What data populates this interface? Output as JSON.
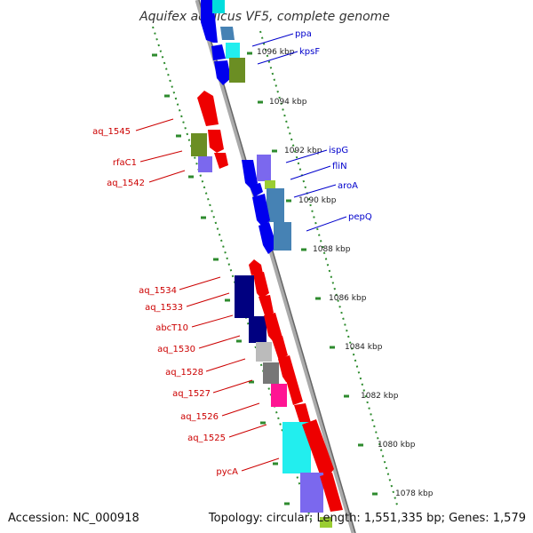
{
  "title": "Aquifex aeolicus VF5, complete genome",
  "footer": {
    "accession": "Accession: NC_000918",
    "stats": "Topology: circular; Length: 1,551,335 bp; Genes: 1,579"
  },
  "colors": {
    "backbone": "#888888",
    "tick": "#2e8b2e",
    "red_label": "#cc0000",
    "blue_label": "#0000cc",
    "gene_red": "#ff0000",
    "gene_blue": "#0000ee",
    "gene_cyan": "#22eeee",
    "gene_olive": "#6b8e23",
    "gene_navy": "#000080",
    "gene_purple": "#7b68ee",
    "gene_steel": "#4682b4",
    "gene_lime": "#9acd32",
    "gene_silver": "#bbbbbb",
    "gene_gray": "#777777",
    "gene_pink": "#ff1493"
  },
  "kbp_labels": [
    "1096 kbp",
    "1094 kbp",
    "1092 kbp",
    "1090 kbp",
    "1088 kbp",
    "1086 kbp",
    "1084 kbp",
    "1082 kbp",
    "1080 kbp",
    "1078 kbp"
  ],
  "genes_left": [
    "aq_1545",
    "rfaC1",
    "aq_1542",
    "aq_1534",
    "aq_1533",
    "abcT10",
    "aq_1530",
    "aq_1528",
    "aq_1527",
    "aq_1526",
    "aq_1525",
    "pycA"
  ],
  "genes_right": [
    "ppa",
    "kpsF",
    "ispG",
    "fliN",
    "aroA",
    "pepQ"
  ]
}
